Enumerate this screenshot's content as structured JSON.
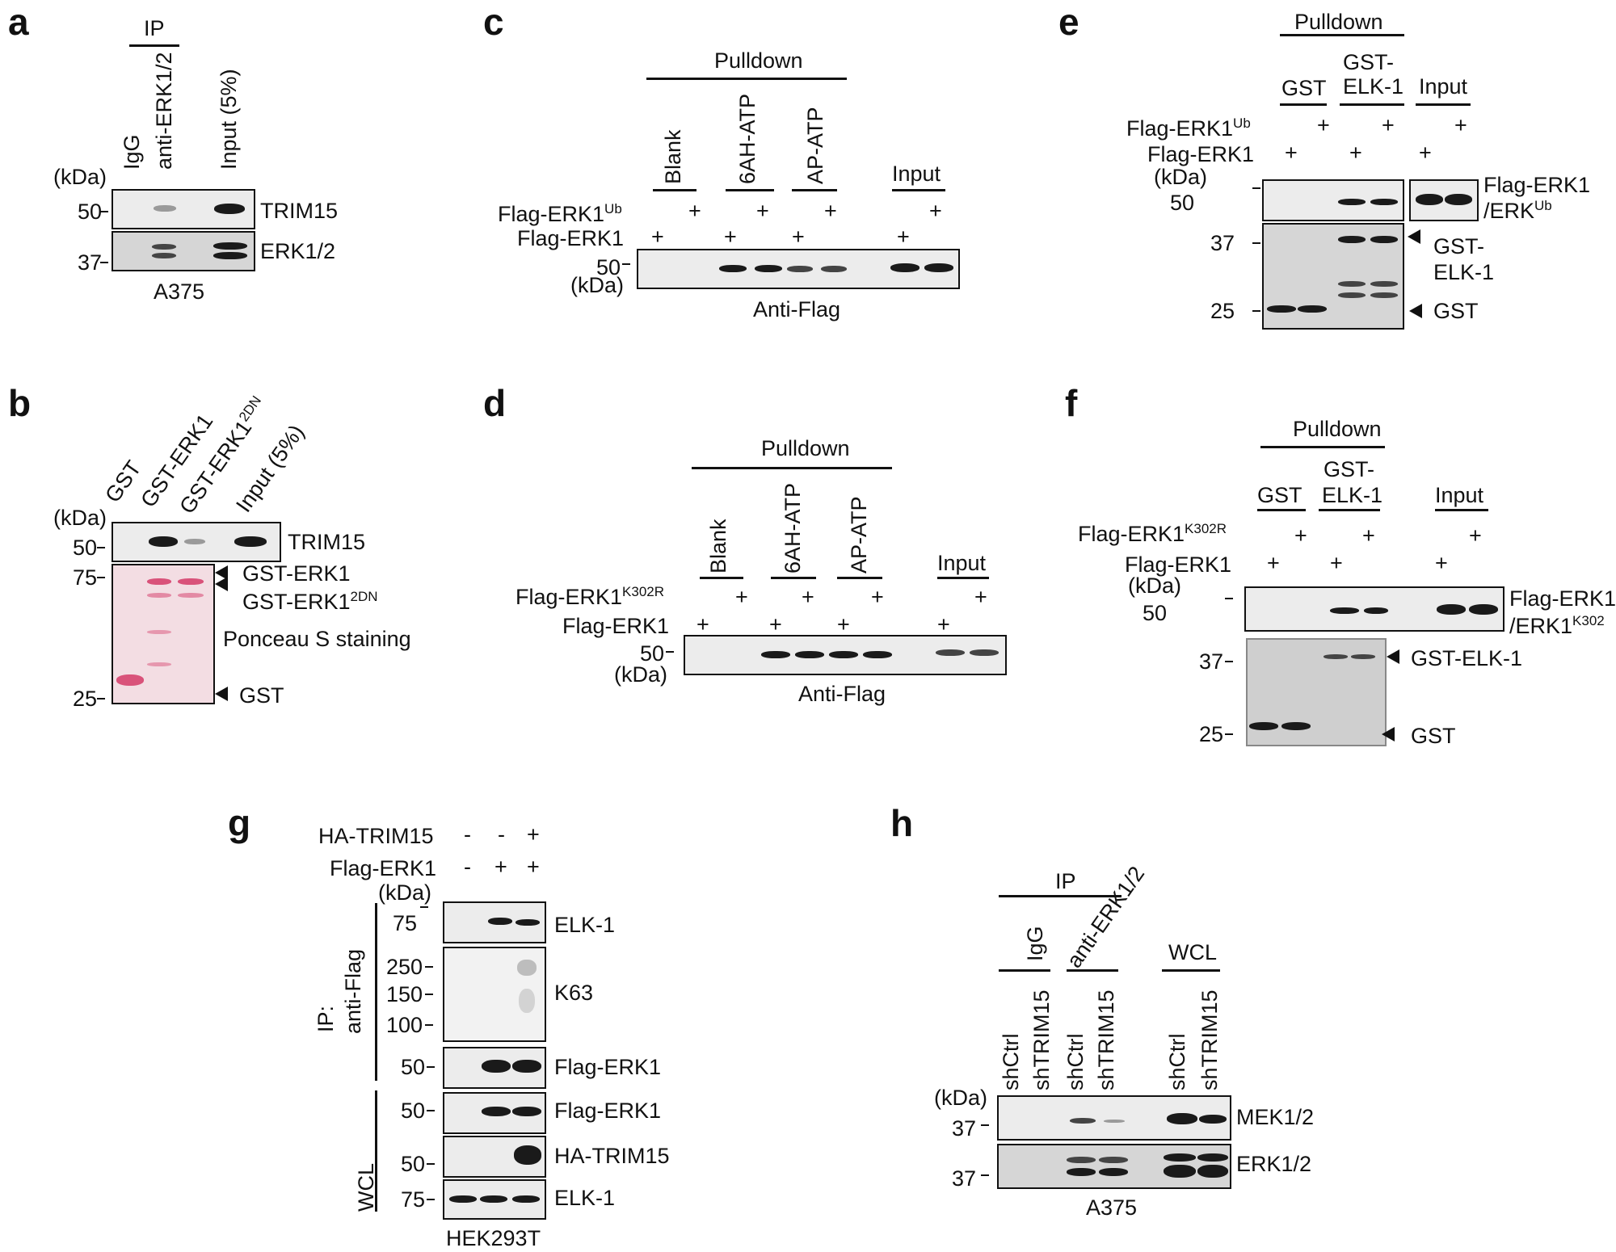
{
  "panels": {
    "a": {
      "letter": "a",
      "ip": "IP",
      "lanes": [
        "IgG",
        "anti-ERK1/2",
        "Input (5%)"
      ],
      "kda": "(kDa)",
      "mw": [
        "50",
        "37"
      ],
      "blots": [
        "TRIM15",
        "ERK1/2"
      ],
      "cell": "A375"
    },
    "b": {
      "letter": "b",
      "lanes": [
        "GST",
        "GST-ERK1",
        "GST-ERK1",
        "Input (5%)"
      ],
      "sup_2dn": "2DN",
      "kda": "(kDa)",
      "mw": [
        "50",
        "75",
        "25"
      ],
      "trim15": "TRIM15",
      "gst_erk1": "GST-ERK1",
      "gst_erk1_2dn": "GST-ERK1",
      "ponceau": "Ponceau S staining",
      "gst": "GST"
    },
    "c": {
      "letter": "c",
      "pulldown": "Pulldown",
      "groups": [
        "Blank",
        "6AH-ATP",
        "AP-ATP",
        "Input"
      ],
      "row1": "Flag-ERK1",
      "row1_sup": "Ub",
      "row2": "Flag-ERK1",
      "plus": "+",
      "mw": "50",
      "kda": "(kDa)",
      "antibody": "Anti-Flag"
    },
    "d": {
      "letter": "d",
      "pulldown": "Pulldown",
      "groups": [
        "Blank",
        "6AH-ATP",
        "AP-ATP",
        "Input"
      ],
      "row1": "Flag-ERK1",
      "row1_sup": "K302R",
      "row2": "Flag-ERK1",
      "plus": "+",
      "mw": "50",
      "kda": "(kDa)",
      "antibody": "Anti-Flag"
    },
    "e": {
      "letter": "e",
      "pulldown": "Pulldown",
      "groups": [
        "GST",
        "GST-",
        "ELK-1",
        "Input"
      ],
      "row1": "Flag-ERK1",
      "row1_sup": "Ub",
      "row2": "Flag-ERK1",
      "plus": "+",
      "kda": "(kDa)",
      "mw": [
        "50",
        "37",
        "25"
      ],
      "label1a": "Flag-ERK1",
      "label1b": "/ERK",
      "label1b_sup": "Ub",
      "label2a": "GST-",
      "label2b": "ELK-1",
      "label3": "GST"
    },
    "f": {
      "letter": "f",
      "pulldown": "Pulldown",
      "groups": [
        "GST",
        "GST-",
        "ELK-1",
        "Input"
      ],
      "row1": "Flag-ERK1",
      "row1_sup": "K302R",
      "row2": "Flag-ERK1",
      "plus": "+",
      "kda": "(kDa)",
      "mw": [
        "50",
        "37",
        "25"
      ],
      "label1a": "Flag-ERK1",
      "label1b": "/ERK1",
      "label1b_sup": "K302",
      "label2": "GST-ELK-1",
      "label3": "GST"
    },
    "g": {
      "letter": "g",
      "row1": "HA-TRIM15",
      "row2": "Flag-ERK1",
      "row1_signs": [
        "-",
        "-",
        "+"
      ],
      "row2_signs": [
        "-",
        "+",
        "+"
      ],
      "kda": "(kDa)",
      "ip_label": "IP:",
      "ip_label2": "anti-Flag",
      "wcl": "WCL",
      "mw": [
        "75",
        "250",
        "150",
        "100",
        "50",
        "50",
        "50",
        "75"
      ],
      "blots": [
        "ELK-1",
        "K63",
        "Flag-ERK1",
        "Flag-ERK1",
        "HA-TRIM15",
        "ELK-1"
      ],
      "cell": "HEK293T"
    },
    "h": {
      "letter": "h",
      "ip": "IP",
      "groups": [
        "IgG",
        "anti-ERK1/2",
        "WCL"
      ],
      "lanes": [
        "shCtrl",
        "shTRIM15",
        "shCtrl",
        "shTRIM15",
        "shCtrl",
        "shTRIM15"
      ],
      "kda": "(kDa)",
      "mw": [
        "37",
        "37"
      ],
      "blots": [
        "MEK1/2",
        "ERK1/2"
      ],
      "cell": "A375"
    }
  }
}
